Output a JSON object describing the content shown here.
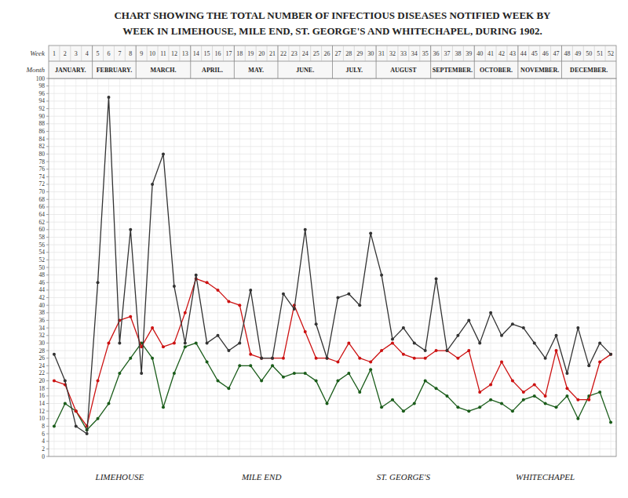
{
  "chart_data": {
    "type": "line",
    "title": "CHART SHOWING THE TOTAL NUMBER OF INFECTIOUS DISEASES NOTIFIED WEEK BY",
    "subtitle": "WEEK IN LIMEHOUSE, MILE END, ST. GEORGE'S AND WHITECHAPEL, DURING 1902.",
    "xlabel": "Week",
    "x_group_label": "Month",
    "x_groups": [
      {
        "label": "JANUARY.",
        "weeks": [
          1,
          4
        ]
      },
      {
        "label": "FEBRUARY.",
        "weeks": [
          5,
          8
        ]
      },
      {
        "label": "MARCH.",
        "weeks": [
          9,
          13
        ]
      },
      {
        "label": "APRIL.",
        "weeks": [
          14,
          17
        ]
      },
      {
        "label": "MAY.",
        "weeks": [
          18,
          21
        ]
      },
      {
        "label": "JUNE.",
        "weeks": [
          22,
          26
        ]
      },
      {
        "label": "JULY.",
        "weeks": [
          27,
          30
        ]
      },
      {
        "label": "AUGUST",
        "weeks": [
          31,
          35
        ]
      },
      {
        "label": "SEPTEMBER.",
        "weeks": [
          36,
          39
        ]
      },
      {
        "label": "OCTOBER.",
        "weeks": [
          40,
          43
        ]
      },
      {
        "label": "NOVEMBER.",
        "weeks": [
          44,
          47
        ]
      },
      {
        "label": "DECEMBER.",
        "weeks": [
          48,
          52
        ]
      }
    ],
    "x": [
      1,
      2,
      3,
      4,
      5,
      6,
      7,
      8,
      9,
      10,
      11,
      12,
      13,
      14,
      15,
      16,
      17,
      18,
      19,
      20,
      21,
      22,
      23,
      24,
      25,
      26,
      27,
      28,
      29,
      30,
      31,
      32,
      33,
      34,
      35,
      36,
      37,
      38,
      39,
      40,
      41,
      42,
      43,
      44,
      45,
      46,
      47,
      48,
      49,
      50,
      51,
      52
    ],
    "xlim": [
      0.5,
      52.5
    ],
    "xticks": [
      1,
      2,
      3,
      4,
      5,
      6,
      7,
      8,
      9,
      10,
      11,
      12,
      13,
      14,
      15,
      16,
      17,
      18,
      19,
      20,
      21,
      22,
      23,
      24,
      25,
      26,
      27,
      28,
      29,
      30,
      31,
      32,
      33,
      34,
      35,
      36,
      37,
      38,
      39,
      40,
      41,
      42,
      43,
      44,
      45,
      46,
      47,
      48,
      49,
      50,
      51,
      52
    ],
    "ylim": [
      0,
      100
    ],
    "yticks": [
      0,
      2,
      4,
      6,
      8,
      10,
      12,
      14,
      16,
      18,
      20,
      22,
      24,
      26,
      28,
      30,
      32,
      34,
      36,
      38,
      40,
      42,
      44,
      46,
      48,
      50,
      52,
      54,
      56,
      58,
      60,
      62,
      64,
      66,
      68,
      70,
      72,
      74,
      76,
      78,
      80,
      82,
      84,
      86,
      88,
      90,
      92,
      94,
      96,
      98,
      100
    ],
    "grid": true,
    "series": [
      {
        "color": "#333333",
        "marker": "circle",
        "values": [
          27,
          20,
          8,
          6,
          46,
          95,
          30,
          60,
          22,
          72,
          80,
          45,
          30,
          48,
          30,
          32,
          28,
          30,
          44,
          26,
          26,
          43,
          39,
          60,
          35,
          26,
          42,
          43,
          40,
          59,
          48,
          31,
          34,
          30,
          28,
          47,
          28,
          32,
          36,
          30,
          38,
          32,
          35,
          34,
          30,
          26,
          32,
          22,
          34,
          24,
          30,
          27
        ]
      },
      {
        "color": "#cc1111",
        "marker": "circle",
        "values": [
          20,
          19,
          12,
          8,
          20,
          30,
          36,
          37,
          29,
          34,
          29,
          30,
          38,
          47,
          46,
          44,
          41,
          40,
          27,
          26,
          26,
          26,
          40,
          33,
          26,
          26,
          25,
          30,
          26,
          25,
          28,
          30,
          27,
          26,
          26,
          28,
          28,
          26,
          28,
          17,
          19,
          25,
          20,
          17,
          19,
          16,
          28,
          18,
          15,
          15,
          25,
          27
        ]
      },
      {
        "color": "#1a5c1a",
        "marker": "circle",
        "values": [
          8,
          14,
          12,
          7,
          10,
          14,
          22,
          26,
          30,
          26,
          13,
          22,
          29,
          30,
          25,
          20,
          18,
          24,
          24,
          20,
          24,
          21,
          22,
          22,
          20,
          14,
          20,
          22,
          17,
          23,
          13,
          15,
          12,
          14,
          20,
          18,
          16,
          13,
          12,
          13,
          15,
          14,
          12,
          15,
          16,
          14,
          13,
          16,
          10,
          16,
          17,
          9
        ]
      }
    ],
    "annotations": [
      {
        "text": "LIMEHOUSE"
      },
      {
        "text": "MILE END"
      },
      {
        "text": "ST. GEORGE'S"
      },
      {
        "text": "WHITECHAPEL"
      }
    ]
  }
}
